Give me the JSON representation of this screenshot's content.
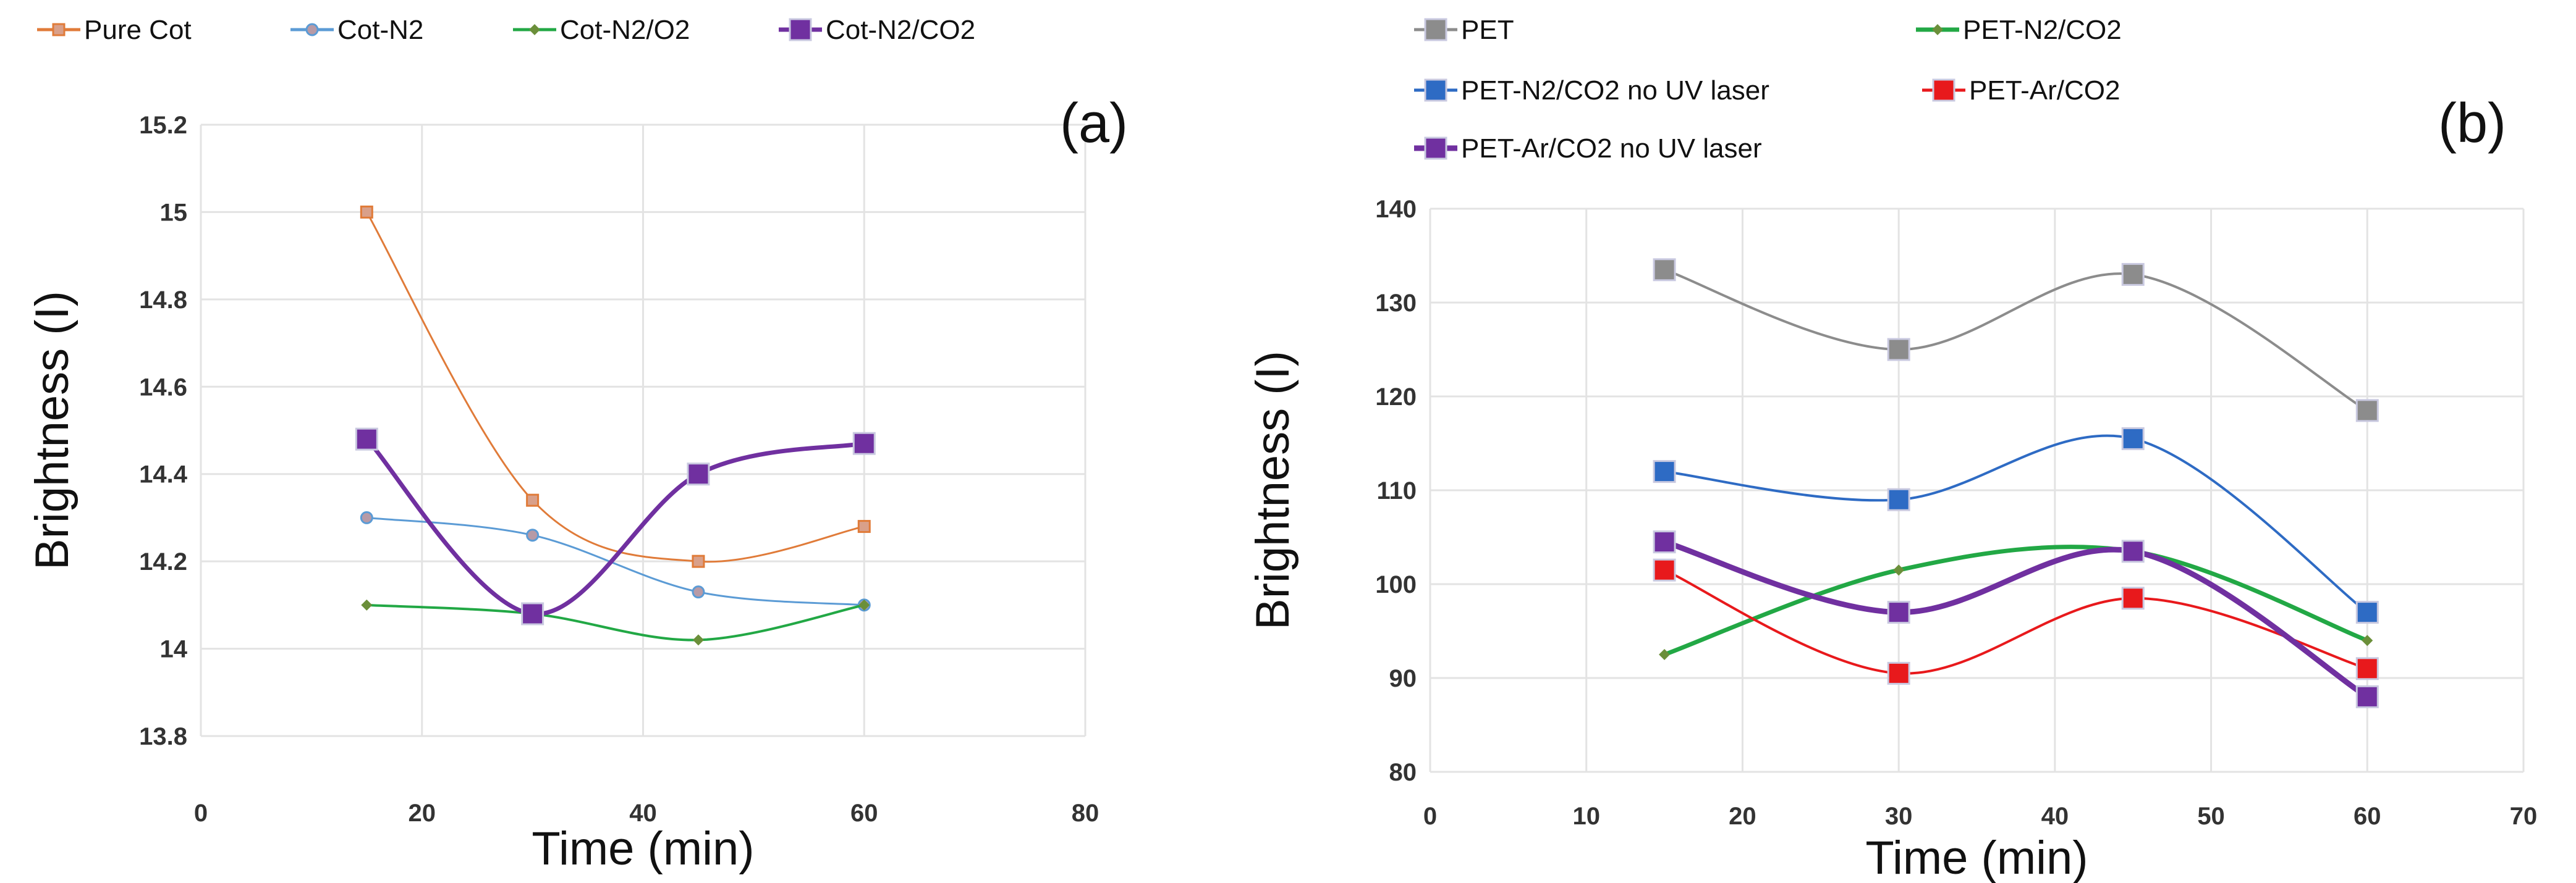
{
  "chart_data": [
    {
      "type": "line",
      "panel_label": "(a)",
      "xlabel": "Time (min)",
      "ylabel": "Brightness (I)",
      "xlim": [
        0,
        80
      ],
      "ylim": [
        13.8,
        15.2
      ],
      "xticks": [
        "0",
        "20",
        "40",
        "60",
        "80"
      ],
      "yticks": [
        "13.8",
        "14",
        "14.2",
        "14.4",
        "14.6",
        "14.8",
        "15",
        "15.2"
      ],
      "grid": true,
      "legend_position": "top",
      "x": [
        15,
        30,
        45,
        60
      ],
      "series": [
        {
          "name": "Pure Cot",
          "color": "#e07b39",
          "marker": "small-square",
          "values": [
            15.0,
            14.34,
            14.2,
            14.28
          ]
        },
        {
          "name": "Cot-N2",
          "color": "#5b9bd5",
          "marker": "circle",
          "values": [
            14.3,
            14.26,
            14.13,
            14.1
          ]
        },
        {
          "name": "Cot-N2/O2",
          "color": "#22a845",
          "marker": "diamond",
          "values": [
            14.1,
            14.08,
            14.02,
            14.1
          ]
        },
        {
          "name": "Cot-N2/CO2",
          "color": "#7030a0",
          "marker": "big-square",
          "values": [
            14.48,
            14.08,
            14.4,
            14.47
          ]
        }
      ]
    },
    {
      "type": "line",
      "panel_label": "(b)",
      "xlabel": "Time (min)",
      "ylabel": "Brightness (I)",
      "xlim": [
        0,
        70
      ],
      "ylim": [
        80,
        140
      ],
      "xticks": [
        "0",
        "10",
        "20",
        "30",
        "40",
        "50",
        "60",
        "70"
      ],
      "yticks": [
        "80",
        "90",
        "100",
        "110",
        "120",
        "130",
        "140"
      ],
      "grid": true,
      "legend_position": "top-left",
      "x": [
        15,
        30,
        45,
        60
      ],
      "series": [
        {
          "name": "PET",
          "color": "#8c8c8c",
          "marker": "big-square",
          "values": [
            133.5,
            125,
            133,
            118.5
          ]
        },
        {
          "name": "PET-N2/CO2",
          "color": "#22a845",
          "marker": "diamond",
          "values": [
            92.5,
            101.5,
            103.5,
            94
          ]
        },
        {
          "name": "PET-N2/CO2 no UV laser",
          "color": "#2e6bc4",
          "marker": "big-square",
          "values": [
            112,
            109,
            115.5,
            97
          ]
        },
        {
          "name": "PET-Ar/CO2",
          "color": "#e8191c",
          "marker": "big-square",
          "values": [
            101.5,
            90.5,
            98.5,
            91
          ]
        },
        {
          "name": "PET-Ar/CO2 no UV laser",
          "color": "#7030a0",
          "marker": "big-square",
          "values": [
            104.5,
            97,
            103.5,
            88
          ]
        }
      ]
    }
  ]
}
